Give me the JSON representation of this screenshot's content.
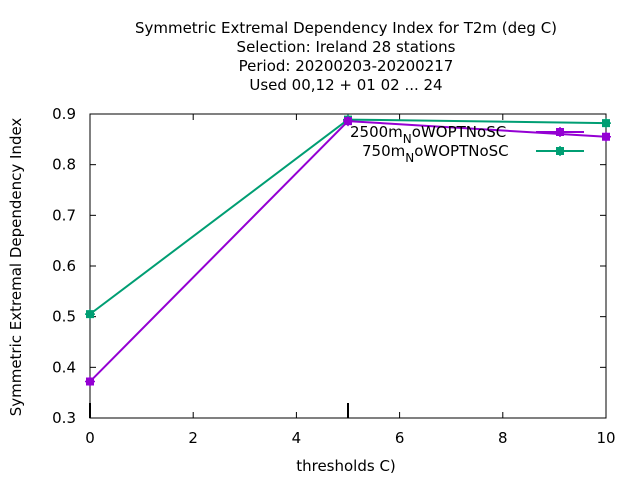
{
  "chart_data": {
    "type": "line",
    "title_lines": [
      "Symmetric Extremal Dependency Index  for T2m (deg C)",
      "Selection: Ireland     28 stations",
      "Period: 20200203-20200217",
      "Used  00,12  + 01 02 ... 24"
    ],
    "xlabel": "thresholds C)",
    "ylabel": "Symmetric Extremal Dependency Index",
    "xlim": [
      0,
      10
    ],
    "ylim": [
      0.3,
      0.9
    ],
    "xticks": [
      0,
      2,
      4,
      6,
      8,
      10
    ],
    "yticks": [
      0.3,
      0.4,
      0.5,
      0.6,
      0.7,
      0.8,
      0.9
    ],
    "grid": false,
    "legend_position": "top-right",
    "series": [
      {
        "name": "2500m_NoWOPTNoSC",
        "legend_main": "2500m",
        "legend_sub": "N",
        "legend_rest": "oWOPTNoSC",
        "color": "#9400d3",
        "x": [
          0,
          5,
          10
        ],
        "y": [
          0.372,
          0.886,
          0.855
        ]
      },
      {
        "name": "750m_NoWOPTNoSC",
        "legend_main": "750m",
        "legend_sub": "N",
        "legend_rest": "oWOPTNoSC",
        "color": "#009e73",
        "x": [
          0,
          5,
          10
        ],
        "y": [
          0.505,
          0.889,
          0.882
        ]
      }
    ]
  }
}
